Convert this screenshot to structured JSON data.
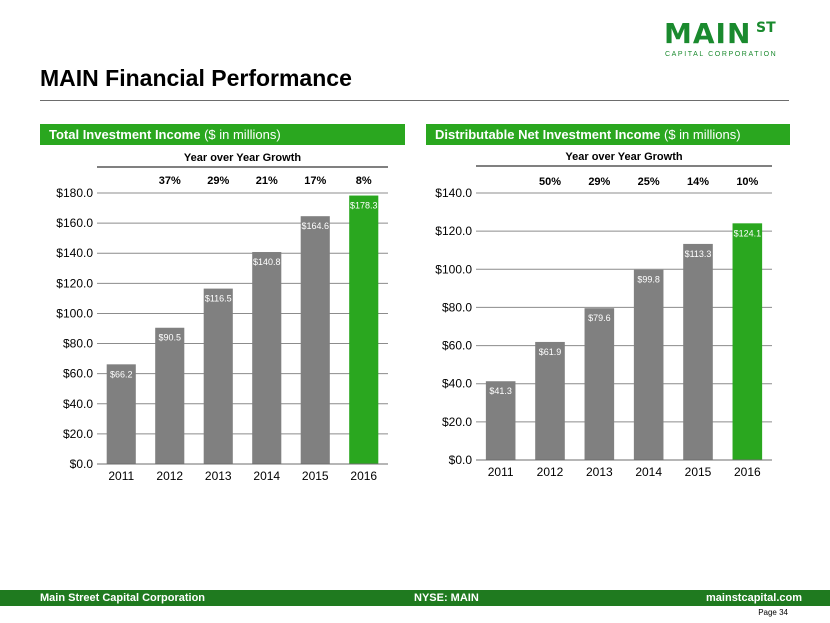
{
  "logo": {
    "main": "MAIN",
    "superscript": "ST",
    "subtitle": "CAPITAL CORPORATION"
  },
  "page_title": "MAIN Financial Performance",
  "panels": {
    "left": {
      "title_bold": "Total Investment Income",
      "title_rest": " ($ in millions)"
    },
    "right": {
      "title_bold": "Distributable Net Investment Income",
      "title_rest": " ($ in millions)"
    }
  },
  "colors": {
    "bar": "#808080",
    "highlight": "#2aa71f",
    "header": "#2aa71f",
    "footer": "#1f7a1f",
    "label": "#ffffff"
  },
  "footer": {
    "left": "Main Street Capital Corporation",
    "center": "NYSE: MAIN",
    "right": "mainstcapital.com"
  },
  "page_label": "Page  34",
  "chart_data": [
    {
      "type": "bar",
      "title": "Total Investment Income ($ in millions)",
      "growth_title": "Year over Year Growth",
      "growth": [
        "37%",
        "29%",
        "21%",
        "17%",
        "8%"
      ],
      "categories": [
        "2011",
        "2012",
        "2013",
        "2014",
        "2015",
        "2016"
      ],
      "values": [
        66.2,
        90.5,
        116.5,
        140.8,
        164.6,
        178.3
      ],
      "value_labels": [
        "$66.2",
        "$90.5",
        "$116.5",
        "$140.8",
        "$164.6",
        "$178.3"
      ],
      "highlight_index": 5,
      "ylim": [
        0,
        180
      ],
      "yticks": [
        0,
        20,
        40,
        60,
        80,
        100,
        120,
        140,
        160,
        180
      ],
      "ytick_labels": [
        "$0.0",
        "$20.0",
        "$40.0",
        "$60.0",
        "$80.0",
        "$100.0",
        "$120.0",
        "$140.0",
        "$160.0",
        "$180.0"
      ],
      "grid": true,
      "xlabel": "",
      "ylabel": ""
    },
    {
      "type": "bar",
      "title": "Distributable Net Investment Income ($ in millions)",
      "growth_title": "Year over Year Growth",
      "growth": [
        "50%",
        "29%",
        "25%",
        "14%",
        "10%"
      ],
      "categories": [
        "2011",
        "2012",
        "2013",
        "2014",
        "2015",
        "2016"
      ],
      "values": [
        41.3,
        61.9,
        79.6,
        99.8,
        113.3,
        124.1
      ],
      "value_labels": [
        "$41.3",
        "$61.9",
        "$79.6",
        "$99.8",
        "$113.3",
        "$124.1"
      ],
      "highlight_index": 5,
      "ylim": [
        0,
        140
      ],
      "yticks": [
        0,
        20,
        40,
        60,
        80,
        100,
        120,
        140
      ],
      "ytick_labels": [
        "$0.0",
        "$20.0",
        "$40.0",
        "$60.0",
        "$80.0",
        "$100.0",
        "$120.0",
        "$140.0"
      ],
      "grid": true,
      "xlabel": "",
      "ylabel": ""
    }
  ]
}
